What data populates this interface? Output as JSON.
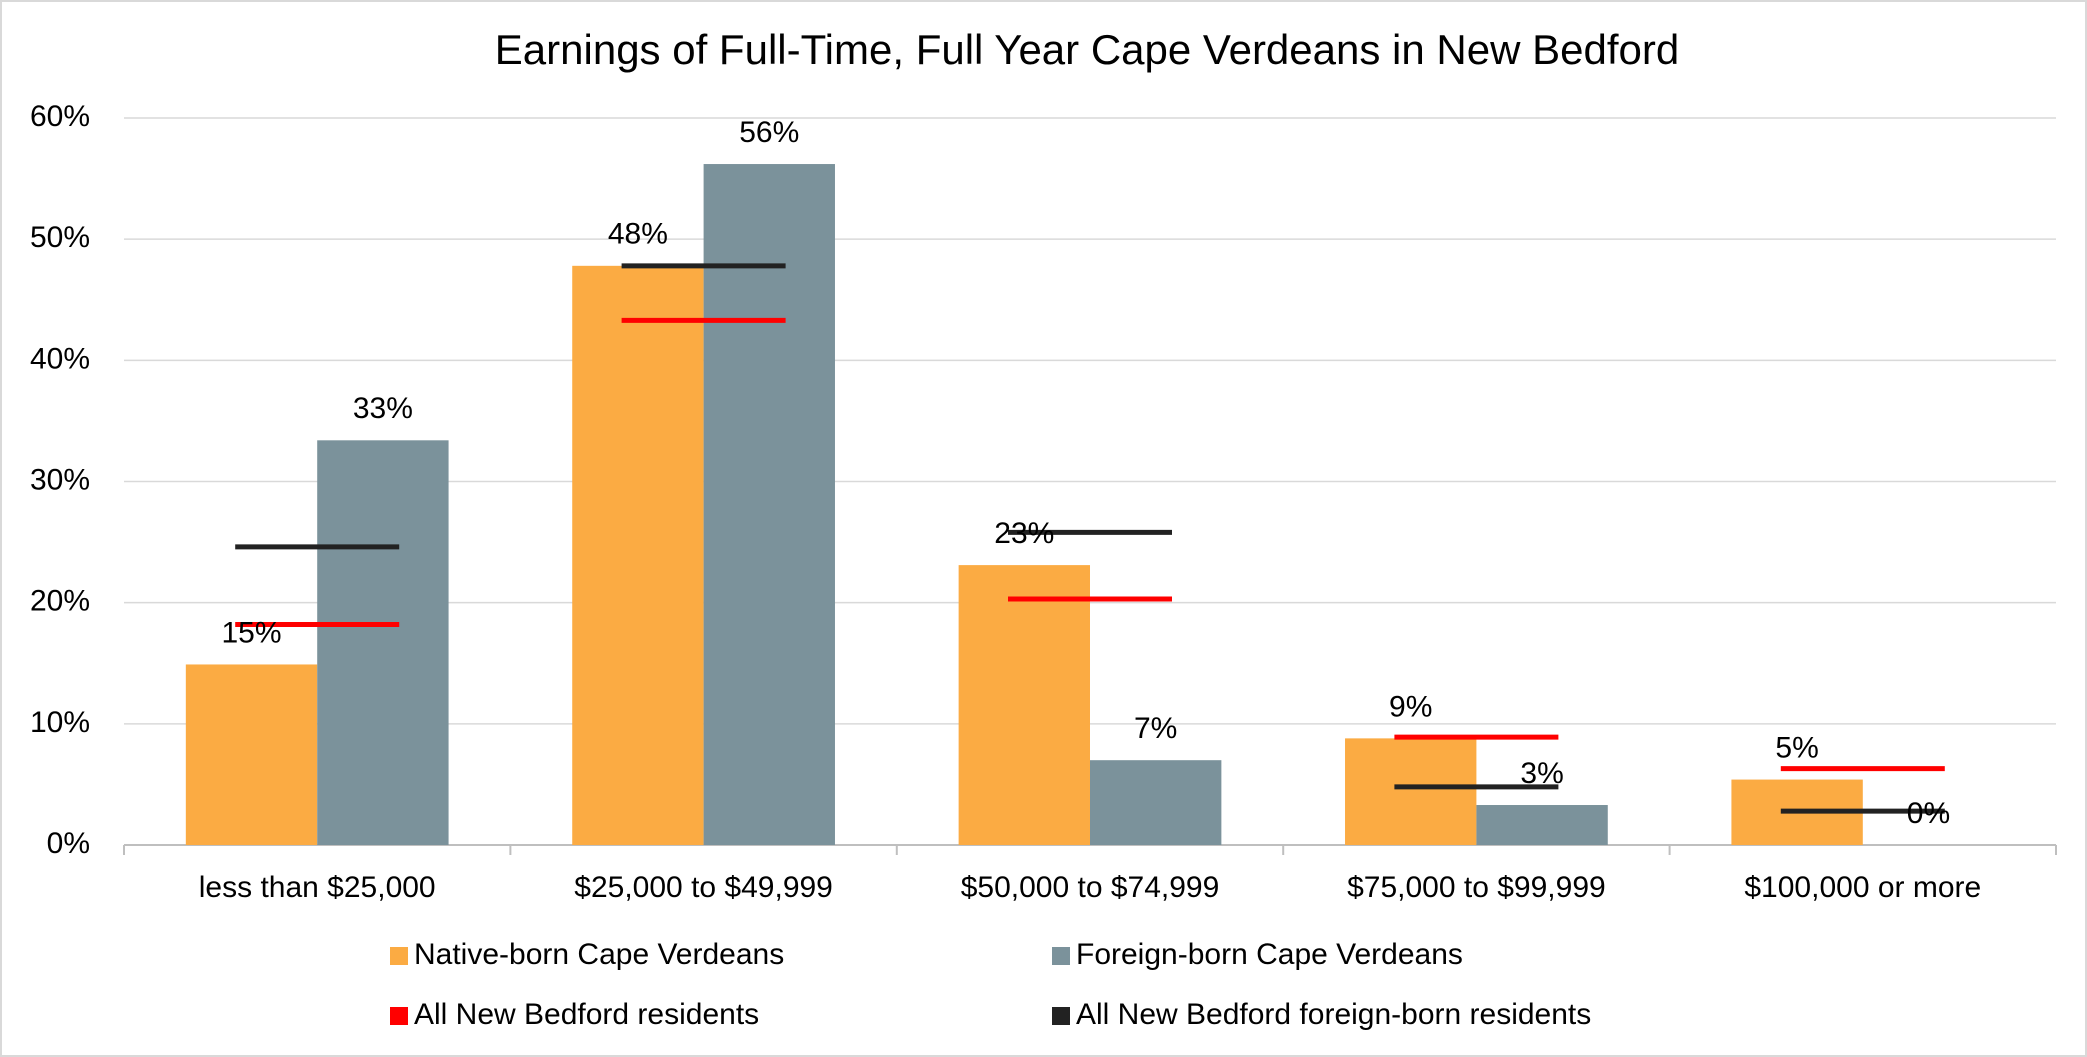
{
  "chart_data": {
    "type": "bar",
    "title": "Earnings of Full-Time, Full Year Cape Verdeans in New Bedford",
    "categories": [
      "less than $25,000",
      "$25,000 to $49,999",
      "$50,000 to $74,999",
      "$75,000 to $99,999",
      "$100,000 or more"
    ],
    "series": [
      {
        "name": "Native-born Cape Verdeans",
        "color": "#fbab43",
        "kind": "bar",
        "values": [
          14.9,
          47.8,
          23.1,
          8.8,
          5.4
        ],
        "value_labels": [
          "15%",
          "48%",
          "23%",
          "9%",
          "5%"
        ]
      },
      {
        "name": "Foreign-born Cape Verdeans",
        "color": "#7b929b",
        "kind": "bar",
        "values": [
          33.4,
          56.2,
          7.0,
          3.3,
          0
        ],
        "value_labels": [
          "33%",
          "56%",
          "7%",
          "3%",
          "0%"
        ]
      },
      {
        "name": "All New Bedford residents",
        "color": "#ff0000",
        "kind": "marker",
        "values": [
          18.2,
          43.3,
          20.3,
          8.9,
          6.3
        ]
      },
      {
        "name": "All New Bedford foreign-born residents",
        "color": "#222222",
        "kind": "marker",
        "values": [
          24.6,
          47.8,
          25.8,
          4.8,
          2.8
        ]
      }
    ],
    "ylim": [
      0,
      60
    ],
    "yticks": [
      {
        "value": 0,
        "label": "0%"
      },
      {
        "value": 10,
        "label": "10%"
      },
      {
        "value": 20,
        "label": "20%"
      },
      {
        "value": 30,
        "label": "30%"
      },
      {
        "value": 40,
        "label": "40%"
      },
      {
        "value": 50,
        "label": "50%"
      },
      {
        "value": 60,
        "label": "60%"
      }
    ],
    "grid": true,
    "legend": "bottom"
  }
}
